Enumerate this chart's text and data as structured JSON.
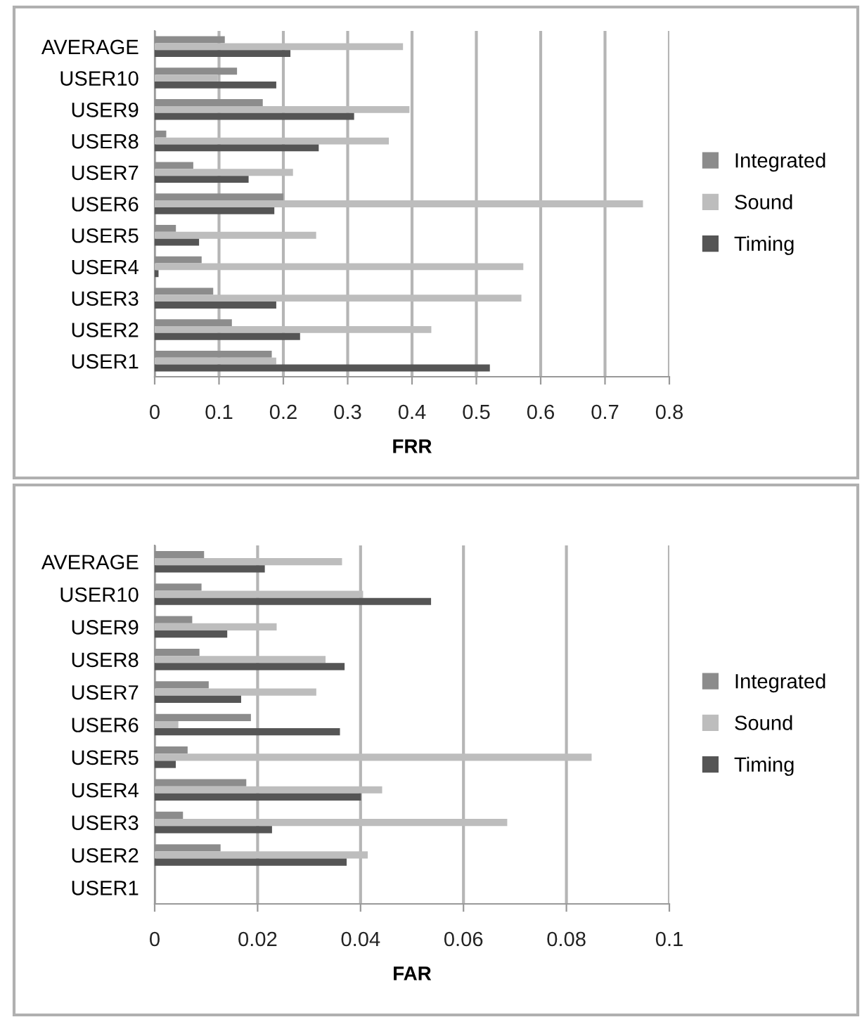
{
  "chart_data": [
    {
      "type": "bar",
      "orientation": "horizontal",
      "xlabel": "FRR",
      "categories": [
        "AVERAGE",
        "USER10",
        "USER9",
        "USER8",
        "USER7",
        "USER6",
        "USER5",
        "USER4",
        "USER3",
        "USER2",
        "USER1"
      ],
      "series": [
        {
          "name": "Integrated",
          "color": "#8c8c8c",
          "values": [
            0.109,
            0.128,
            0.168,
            0.018,
            0.06,
            0.2,
            0.033,
            0.073,
            0.091,
            0.12,
            0.182
          ]
        },
        {
          "name": "Sound",
          "color": "#bdbdbd",
          "values": [
            0.386,
            0.098,
            0.396,
            0.364,
            0.215,
            0.759,
            0.251,
            0.573,
            0.57,
            0.43,
            0.189
          ]
        },
        {
          "name": "Timing",
          "color": "#555555",
          "values": [
            0.211,
            0.189,
            0.31,
            0.255,
            0.146,
            0.186,
            0.069,
            0.006,
            0.189,
            0.226,
            0.521
          ]
        }
      ],
      "xlim": [
        0,
        0.8
      ],
      "xticks": [
        0,
        0.1,
        0.2,
        0.3,
        0.4,
        0.5,
        0.6,
        0.7,
        0.8
      ],
      "grid": "x",
      "legend": "right"
    },
    {
      "type": "bar",
      "orientation": "horizontal",
      "xlabel": "FAR",
      "categories": [
        "AVERAGE",
        "USER10",
        "USER9",
        "USER8",
        "USER7",
        "USER6",
        "USER5",
        "USER4",
        "USER3",
        "USER2",
        "USER1"
      ],
      "series": [
        {
          "name": "Integrated",
          "color": "#8c8c8c",
          "values": [
            0.0096,
            0.0091,
            0.0073,
            0.0087,
            0.0105,
            0.0187,
            0.0064,
            0.0178,
            0.0055,
            0.0128,
            0
          ]
        },
        {
          "name": "Sound",
          "color": "#bdbdbd",
          "values": [
            0.0364,
            0.0405,
            0.0237,
            0.0332,
            0.0314,
            0.0046,
            0.0849,
            0.0442,
            0.0685,
            0.0414,
            0
          ]
        },
        {
          "name": "Timing",
          "color": "#555555",
          "values": [
            0.0214,
            0.0537,
            0.0141,
            0.0369,
            0.0168,
            0.036,
            0.0041,
            0.0401,
            0.0228,
            0.0373,
            0
          ]
        }
      ],
      "xlim": [
        0,
        0.1
      ],
      "xticks": [
        0,
        0.02,
        0.04,
        0.06,
        0.08,
        0.1
      ],
      "grid": "x",
      "legend": "right"
    }
  ]
}
